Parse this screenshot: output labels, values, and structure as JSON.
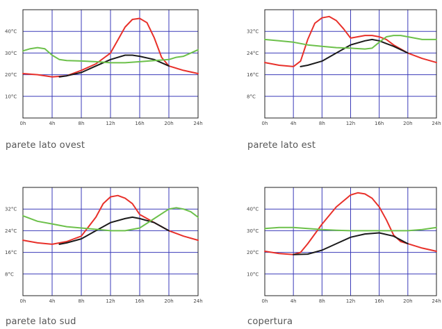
{
  "colors": {
    "grid": "#3a3ab8",
    "red": "#e8302a",
    "black": "#1a1a1a",
    "green": "#6cc04a",
    "frame": "#222222"
  },
  "chart_data": [
    {
      "type": "line",
      "title": "parete lato ovest",
      "x_ticks": [
        "0h",
        "4h",
        "8h",
        "12h",
        "16h",
        "20h",
        "24h"
      ],
      "y_ticks": [
        "10°C",
        "20°C",
        "30°C",
        "40°C"
      ],
      "xlim": [
        0,
        24
      ],
      "ylim": [
        0,
        50
      ],
      "grid": true,
      "series": [
        {
          "color": "red",
          "x": [
            0,
            2,
            4,
            6,
            8,
            10,
            12,
            13,
            14,
            15,
            16,
            17,
            18,
            19,
            20,
            22,
            24
          ],
          "y": [
            20.5,
            20,
            19,
            19.5,
            22,
            25,
            30,
            36,
            42,
            45.5,
            46,
            44,
            37,
            28,
            24,
            22,
            20.5
          ]
        },
        {
          "color": "black",
          "x": [
            5,
            6,
            8,
            10,
            12,
            14,
            15,
            16,
            18,
            20
          ],
          "y": [
            19,
            19.5,
            21,
            24,
            27,
            29,
            29,
            28.5,
            27,
            24
          ]
        },
        {
          "color": "green",
          "x": [
            0,
            1,
            2,
            3,
            4,
            5,
            6,
            8,
            10,
            12,
            14,
            16,
            18,
            20,
            21,
            22,
            23,
            24
          ],
          "y": [
            31,
            32,
            32.5,
            32,
            29,
            27,
            26.5,
            26.3,
            26,
            25.5,
            25.5,
            26,
            26.5,
            27,
            28,
            28.5,
            30,
            31.5
          ]
        }
      ]
    },
    {
      "type": "line",
      "title": "parete lato est",
      "x_ticks": [
        "0h",
        "4h",
        "8h",
        "12h",
        "16h",
        "20h",
        "24h"
      ],
      "y_ticks": [
        "8°C",
        "16°C",
        "24°C",
        "32°C"
      ],
      "xlim": [
        0,
        24
      ],
      "ylim": [
        0,
        40
      ],
      "grid": true,
      "series": [
        {
          "color": "red",
          "x": [
            0,
            2,
            4,
            5,
            6,
            7,
            8,
            9,
            10,
            11,
            12,
            13,
            14,
            15,
            16,
            17,
            18,
            20,
            22,
            24
          ],
          "y": [
            20.5,
            19.5,
            19,
            21,
            29,
            35,
            37,
            37.5,
            36,
            33,
            29.5,
            30,
            30.5,
            30.5,
            30,
            29,
            27,
            24,
            22,
            20.5
          ]
        },
        {
          "color": "black",
          "x": [
            5,
            6,
            8,
            10,
            12,
            14,
            15,
            16,
            17,
            18,
            20
          ],
          "y": [
            19,
            19.5,
            21,
            24,
            27,
            28.5,
            29,
            28.5,
            27.5,
            26.5,
            24
          ]
        },
        {
          "color": "green",
          "x": [
            0,
            2,
            4,
            6,
            8,
            10,
            12,
            14,
            15,
            16,
            17,
            18,
            19,
            20,
            22,
            24
          ],
          "y": [
            29,
            28.5,
            28,
            27,
            26.5,
            26,
            25.8,
            25.5,
            25.8,
            28,
            30,
            30.5,
            30.5,
            30,
            29,
            29
          ]
        }
      ]
    },
    {
      "type": "line",
      "title": "parete lato sud",
      "x_ticks": [
        "0h",
        "4h",
        "8h",
        "12h",
        "16h",
        "20h",
        "24h"
      ],
      "y_ticks": [
        "8°C",
        "16°C",
        "24°C",
        "32°C"
      ],
      "xlim": [
        0,
        24
      ],
      "ylim": [
        0,
        40
      ],
      "grid": true,
      "series": [
        {
          "color": "red",
          "x": [
            0,
            2,
            4,
            6,
            8,
            10,
            11,
            12,
            13,
            14,
            15,
            16,
            18,
            20,
            22,
            24
          ],
          "y": [
            20.5,
            19.5,
            19,
            20,
            22,
            29,
            34,
            36.5,
            37,
            36,
            34,
            30,
            27,
            24,
            22,
            20.5
          ]
        },
        {
          "color": "black",
          "x": [
            5,
            6,
            8,
            10,
            12,
            14,
            15,
            16,
            18,
            20
          ],
          "y": [
            19,
            19.5,
            21,
            24,
            27,
            28.5,
            29,
            28.5,
            27,
            24
          ]
        },
        {
          "color": "green",
          "x": [
            0,
            2,
            4,
            6,
            8,
            10,
            12,
            14,
            16,
            18,
            20,
            21,
            22,
            23,
            24
          ],
          "y": [
            29.5,
            27.5,
            26.5,
            25.5,
            25,
            24.5,
            24,
            24,
            25,
            28.5,
            32,
            32.5,
            32,
            31,
            29
          ]
        }
      ]
    },
    {
      "type": "line",
      "title": "copertura",
      "x_ticks": [
        "0h",
        "4h",
        "8h",
        "12h",
        "16h",
        "20h",
        "24h"
      ],
      "y_ticks": [
        "10°C",
        "20°C",
        "30°C",
        "40°C"
      ],
      "xlim": [
        0,
        24
      ],
      "ylim": [
        0,
        50
      ],
      "grid": true,
      "series": [
        {
          "color": "red",
          "x": [
            0,
            2,
            4,
            5,
            6,
            8,
            10,
            12,
            13,
            14,
            15,
            16,
            17,
            18,
            19,
            20,
            22,
            24
          ],
          "y": [
            20.5,
            19.5,
            19,
            20,
            24,
            33,
            41,
            46.5,
            47.5,
            47,
            45,
            41,
            35,
            28,
            25,
            24,
            22,
            20.5
          ]
        },
        {
          "color": "black",
          "x": [
            4,
            6,
            8,
            10,
            12,
            14,
            16,
            18,
            20
          ],
          "y": [
            19,
            19.2,
            21,
            24,
            27,
            28.5,
            29,
            27.5,
            24
          ]
        },
        {
          "color": "green",
          "x": [
            0,
            2,
            4,
            6,
            8,
            10,
            12,
            14,
            16,
            18,
            20,
            22,
            24
          ],
          "y": [
            31,
            31.5,
            31.5,
            31,
            30.5,
            30.2,
            30,
            30,
            30,
            30,
            30,
            30.5,
            31.5
          ]
        }
      ]
    }
  ]
}
